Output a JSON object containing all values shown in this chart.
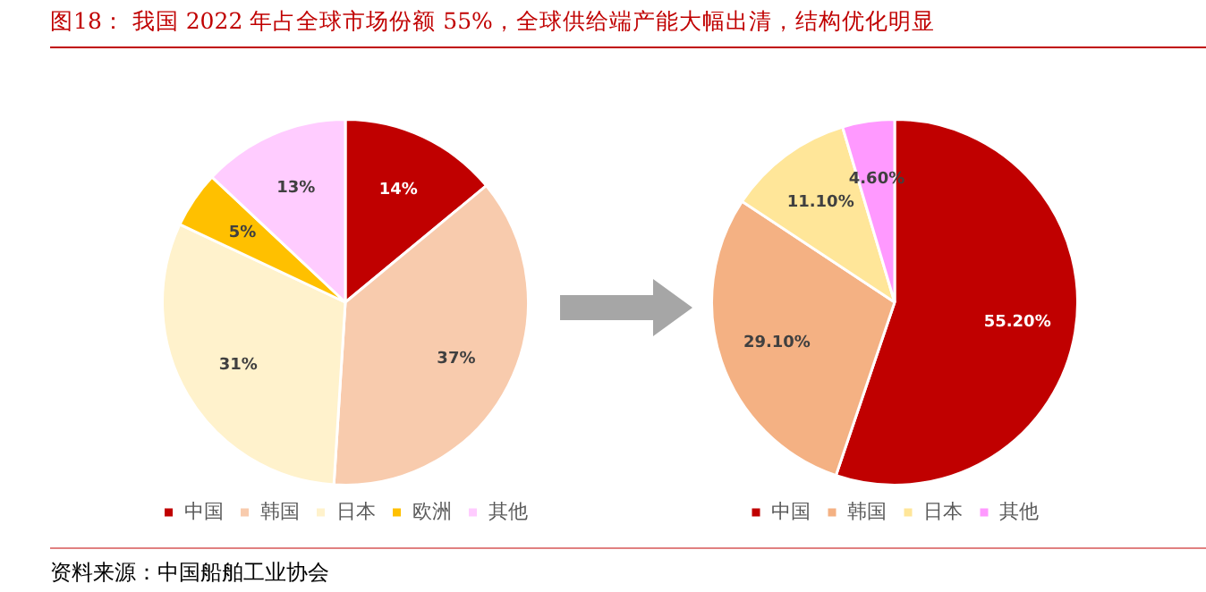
{
  "chart_data": [
    {
      "type": "pie",
      "title": "图18： 我国 2022 年占全球市场份额 55%，全球供给端产能大幅出清，结构优化明显",
      "categories": [
        "中国",
        "韩国",
        "日本",
        "欧洲",
        "其他"
      ],
      "values": [
        14,
        37,
        31,
        5,
        13
      ],
      "colors": [
        "#c00000",
        "#f8cbad",
        "#fff2cc",
        "#ffc000",
        "#ffccff"
      ],
      "value_labels": [
        "14%",
        "37%",
        "31%",
        "5%",
        "13%"
      ],
      "legend": "bottom",
      "annotations": [
        "资料来源：中国船舶工业协会"
      ]
    },
    {
      "type": "pie",
      "categories": [
        "中国",
        "韩国",
        "日本",
        "其他"
      ],
      "values": [
        55.2,
        29.1,
        11.1,
        4.6
      ],
      "colors": [
        "#c00000",
        "#f4b183",
        "#ffe699",
        "#ff99ff"
      ],
      "value_labels": [
        "55.20%",
        "29.10%",
        "11.10%",
        "4.60%"
      ],
      "legend": "bottom"
    }
  ]
}
